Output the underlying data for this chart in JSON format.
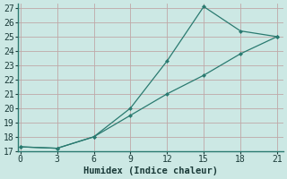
{
  "line1_x": [
    0,
    3,
    6,
    9,
    12,
    15,
    18,
    21
  ],
  "line1_y": [
    17.3,
    17.2,
    18.0,
    20.0,
    23.3,
    27.1,
    25.4,
    25.0
  ],
  "line2_x": [
    0,
    3,
    6,
    9,
    12,
    15,
    18,
    21
  ],
  "line2_y": [
    17.3,
    17.2,
    18.0,
    19.5,
    21.0,
    22.3,
    23.8,
    25.0
  ],
  "line_color": "#2a7a70",
  "bg_color": "#cce8e4",
  "grid_color": "#c0a8a8",
  "xlabel": "Humidex (Indice chaleur)",
  "xticks": [
    0,
    3,
    6,
    9,
    12,
    15,
    18,
    21
  ],
  "yticks": [
    17,
    18,
    19,
    20,
    21,
    22,
    23,
    24,
    25,
    26,
    27
  ],
  "xlim": [
    -0.2,
    21.5
  ],
  "ylim": [
    17,
    27.3
  ],
  "xlabel_fontsize": 7.5,
  "tick_fontsize": 7
}
